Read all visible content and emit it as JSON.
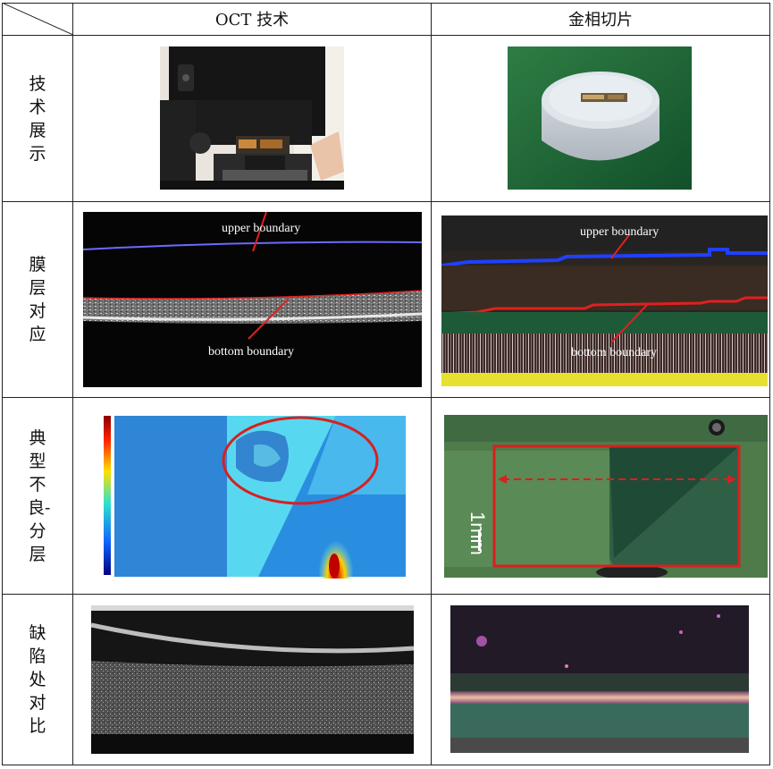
{
  "header": {
    "col1": "OCT 技术",
    "col2": "金相切片"
  },
  "rows": [
    {
      "label": "技术展示"
    },
    {
      "label": "膜层对应"
    },
    {
      "label": "典型不良-分层"
    },
    {
      "label": "缺陷处对比"
    }
  ],
  "annotations": {
    "oct_upper": "upper boundary",
    "oct_bottom": "bottom boundary",
    "slice_upper": "upper boundary",
    "slice_bottom": "bottom boundary",
    "scale": "1mm"
  },
  "colors": {
    "border": "#222222",
    "upper_line": "#6a6aff",
    "bottom_line": "#e02020",
    "annotation_red": "#e02020"
  }
}
